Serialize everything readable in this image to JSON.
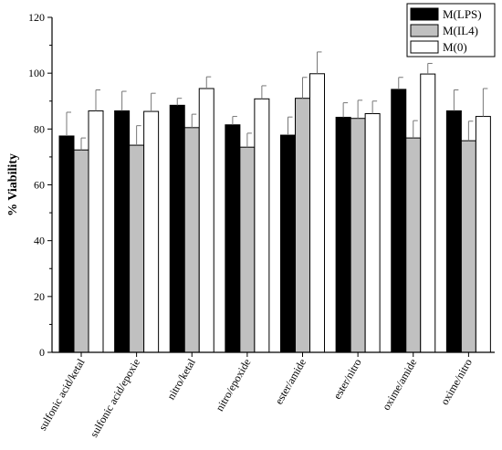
{
  "chart_data": {
    "type": "bar",
    "title": "",
    "xlabel": "",
    "ylabel": "% Viability",
    "ylim": [
      0,
      120
    ],
    "yticks": [
      0,
      20,
      40,
      60,
      80,
      100,
      120
    ],
    "grid": false,
    "legend_position": "top-right",
    "categories": [
      "sulfonic acid/ketal",
      "sulfonic acid/epoxie",
      "nitro/ketal",
      "nitro/epoxide",
      "ester/amide",
      "ester/nitro",
      "oxime/amide",
      "oxime/nitro"
    ],
    "series": [
      {
        "name": "M(LPS)",
        "color": "#000000",
        "values": [
          77.5,
          86.5,
          88.5,
          81.5,
          77.8,
          84.2,
          94.2,
          86.5
        ],
        "errors": [
          8.5,
          7.0,
          2.5,
          3.0,
          6.5,
          5.2,
          4.3,
          7.5
        ]
      },
      {
        "name": "M(IL4)",
        "color": "#c0c0c0",
        "values": [
          72.5,
          74.2,
          80.5,
          73.5,
          91.0,
          83.8,
          76.8,
          75.8
        ],
        "errors": [
          4.3,
          7.0,
          4.8,
          5.0,
          7.5,
          6.5,
          6.2,
          7.0
        ]
      },
      {
        "name": "M(0)",
        "color": "#ffffff",
        "values": [
          86.5,
          86.3,
          94.5,
          90.8,
          99.8,
          85.5,
          99.7,
          84.5
        ],
        "errors": [
          7.5,
          6.5,
          4.2,
          4.7,
          7.8,
          4.5,
          3.8,
          10.0
        ]
      }
    ]
  }
}
